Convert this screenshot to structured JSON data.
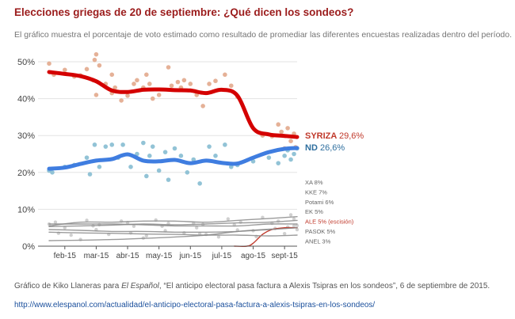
{
  "title": "Elecciones griegas de 20 de septiembre: ¿Qué dicen los sondeos?",
  "subtitle": "El gráfico muestra el porcentaje de voto estimado como resultado de promediar las diferentes encuestas realizadas dentro del período.",
  "caption": {
    "prefix": "Gráfico de Kiko Llaneras para ",
    "outlet": "El Español",
    "suffix": ", “El anticipo electoral pasa factura a Alexis Tsipras en los sondeos”, 6 de septiembre de 2015."
  },
  "source_url": "http://www.elespanol.com/actualidad/el-anticipo-electoral-pasa-factura-a-alexis-tsipras-en-los-sondeos/",
  "chart_data": {
    "type": "line",
    "title": "Elecciones griegas de 20 de septiembre: ¿Qué dicen los sondeos?",
    "xlabel": "",
    "ylabel": "",
    "x_range": [
      0,
      7.9
    ],
    "ylim": [
      0,
      50
    ],
    "yticks": [
      0,
      10,
      20,
      30,
      40,
      50
    ],
    "ytick_labels": [
      "0%",
      "10%",
      "20%",
      "30%",
      "40%",
      "50%"
    ],
    "xticks": [
      {
        "x": 0.5,
        "label": "feb-15"
      },
      {
        "x": 1.5,
        "label": "mar-15"
      },
      {
        "x": 2.5,
        "label": "abr-15"
      },
      {
        "x": 3.5,
        "label": "may-15"
      },
      {
        "x": 4.5,
        "label": "jun-15"
      },
      {
        "x": 5.5,
        "label": "jul-15"
      },
      {
        "x": 6.5,
        "label": "ago-15"
      },
      {
        "x": 7.5,
        "label": "sept-15"
      }
    ],
    "colors": {
      "syriza": "#d40000",
      "syriza_points": "#e2a98c",
      "nd": "#3f7de0",
      "nd_points": "#86bcd1",
      "minor": "#c4c4c4",
      "minor_line": "#8a8a8a",
      "ale": "#c0392b",
      "grid": "#e3e3e3",
      "axis": "#555555"
    },
    "series": [
      {
        "name": "SYRIZA",
        "label": "SYRIZA",
        "value_label": "29,6%",
        "role": "major",
        "trend": [
          [
            0,
            47.2
          ],
          [
            0.5,
            46.7
          ],
          [
            1,
            46.1
          ],
          [
            1.5,
            44.7
          ],
          [
            2,
            42.2
          ],
          [
            2.5,
            41.8
          ],
          [
            3,
            42.4
          ],
          [
            3.5,
            42.5
          ],
          [
            4,
            42.3
          ],
          [
            4.5,
            42.2
          ],
          [
            5,
            41.5
          ],
          [
            5.5,
            42.4
          ],
          [
            6,
            40.8
          ],
          [
            6.5,
            32.0
          ],
          [
            7,
            30.3
          ],
          [
            7.5,
            29.9
          ],
          [
            7.9,
            29.6
          ]
        ],
        "polls": [
          [
            0,
            49.5
          ],
          [
            0.15,
            46.5
          ],
          [
            0.5,
            47.8
          ],
          [
            0.8,
            46.0
          ],
          [
            1,
            46.3
          ],
          [
            1.2,
            48.0
          ],
          [
            1.4,
            45.0
          ],
          [
            1.45,
            50.5
          ],
          [
            1.5,
            52.0
          ],
          [
            1.5,
            41.0
          ],
          [
            1.6,
            49.0
          ],
          [
            1.8,
            44.0
          ],
          [
            2,
            46.5
          ],
          [
            2,
            41.5
          ],
          [
            2.1,
            43.0
          ],
          [
            2.3,
            39.5
          ],
          [
            2.5,
            40.8
          ],
          [
            2.7,
            44.0
          ],
          [
            2.8,
            45.0
          ],
          [
            3,
            43.0
          ],
          [
            3.1,
            46.5
          ],
          [
            3.2,
            44.0
          ],
          [
            3.3,
            40.0
          ],
          [
            3.5,
            41.0
          ],
          [
            3.8,
            48.5
          ],
          [
            3.9,
            43.5
          ],
          [
            4.1,
            44.5
          ],
          [
            4.2,
            43.0
          ],
          [
            4.3,
            45.0
          ],
          [
            4.5,
            44.0
          ],
          [
            4.7,
            41.0
          ],
          [
            4.9,
            38.0
          ],
          [
            5.1,
            44.0
          ],
          [
            5.3,
            44.8
          ],
          [
            5.6,
            46.5
          ],
          [
            5.8,
            43.5
          ],
          [
            6,
            40.5
          ],
          [
            6.8,
            30.0
          ],
          [
            7.1,
            29.8
          ],
          [
            7.3,
            33.0
          ],
          [
            7.4,
            31.0
          ],
          [
            7.5,
            26.5
          ],
          [
            7.6,
            32.0
          ],
          [
            7.7,
            28.5
          ],
          [
            7.8,
            30.5
          ],
          [
            7.85,
            26.8
          ]
        ]
      },
      {
        "name": "ND",
        "label": "ND",
        "value_label": "26,6%",
        "role": "major",
        "trend": [
          [
            0,
            21.0
          ],
          [
            0.5,
            21.3
          ],
          [
            1,
            22.3
          ],
          [
            1.5,
            23.2
          ],
          [
            2,
            23.6
          ],
          [
            2.5,
            24.9
          ],
          [
            3,
            23.2
          ],
          [
            3.5,
            23.0
          ],
          [
            4,
            23.4
          ],
          [
            4.5,
            22.5
          ],
          [
            5,
            23.2
          ],
          [
            5.5,
            22.6
          ],
          [
            6,
            22.4
          ],
          [
            6.5,
            24.0
          ],
          [
            7,
            25.5
          ],
          [
            7.5,
            26.4
          ],
          [
            7.9,
            26.6
          ]
        ],
        "polls": [
          [
            0,
            20.5
          ],
          [
            0.1,
            20.0
          ],
          [
            0.5,
            21.5
          ],
          [
            0.8,
            22.0
          ],
          [
            1.2,
            24.0
          ],
          [
            1.3,
            19.5
          ],
          [
            1.45,
            27.5
          ],
          [
            1.6,
            21.5
          ],
          [
            1.8,
            27.0
          ],
          [
            2,
            27.5
          ],
          [
            2.2,
            24.0
          ],
          [
            2.35,
            27.5
          ],
          [
            2.6,
            21.5
          ],
          [
            2.8,
            25.0
          ],
          [
            3,
            28.0
          ],
          [
            3.1,
            19.0
          ],
          [
            3.2,
            24.5
          ],
          [
            3.3,
            27.0
          ],
          [
            3.5,
            20.5
          ],
          [
            3.7,
            25.5
          ],
          [
            3.8,
            18.0
          ],
          [
            4,
            26.5
          ],
          [
            4.2,
            24.5
          ],
          [
            4.4,
            20.0
          ],
          [
            4.6,
            23.5
          ],
          [
            4.8,
            17.0
          ],
          [
            5.1,
            27.0
          ],
          [
            5.3,
            24.5
          ],
          [
            5.6,
            27.5
          ],
          [
            5.8,
            21.5
          ],
          [
            6,
            22.0
          ],
          [
            6.5,
            23.0
          ],
          [
            7,
            24.0
          ],
          [
            7.3,
            22.5
          ],
          [
            7.5,
            24.5
          ],
          [
            7.6,
            26.0
          ],
          [
            7.7,
            23.5
          ],
          [
            7.8,
            25.0
          ],
          [
            7.9,
            26.5
          ]
        ]
      },
      {
        "name": "XA",
        "label": "XA 8%",
        "role": "minor",
        "trend": [
          [
            0,
            5.5
          ],
          [
            1,
            6.5
          ],
          [
            2,
            6.5
          ],
          [
            3,
            6.8
          ],
          [
            4,
            6.8
          ],
          [
            5,
            6.5
          ],
          [
            6,
            7.0
          ],
          [
            7,
            7.5
          ],
          [
            7.9,
            8.0
          ]
        ],
        "polls": [
          [
            0,
            6.0
          ],
          [
            1.2,
            7.0
          ],
          [
            2.3,
            6.8
          ],
          [
            3.4,
            7.1
          ],
          [
            4.6,
            6.2
          ],
          [
            5.7,
            7.4
          ],
          [
            6.8,
            7.8
          ],
          [
            7.7,
            8.5
          ]
        ]
      },
      {
        "name": "KKE",
        "label": "KKE 7%",
        "role": "minor",
        "trend": [
          [
            0,
            5.3
          ],
          [
            1,
            5.5
          ],
          [
            2,
            5.7
          ],
          [
            3,
            6.0
          ],
          [
            4,
            5.8
          ],
          [
            5,
            6.0
          ],
          [
            6,
            6.3
          ],
          [
            7,
            6.5
          ],
          [
            7.9,
            7.0
          ]
        ],
        "polls": [
          [
            0.5,
            5.0
          ],
          [
            1.6,
            5.8
          ],
          [
            2.7,
            5.4
          ],
          [
            3.8,
            6.2
          ],
          [
            4.9,
            5.9
          ],
          [
            6.1,
            6.5
          ],
          [
            7.3,
            6.8
          ],
          [
            7.8,
            7.4
          ]
        ]
      },
      {
        "name": "Potami",
        "label": "Potami 6%",
        "role": "minor",
        "trend": [
          [
            0,
            6.0
          ],
          [
            1,
            6.0
          ],
          [
            2,
            6.0
          ],
          [
            3,
            5.8
          ],
          [
            4,
            5.5
          ],
          [
            5,
            5.5
          ],
          [
            6,
            5.5
          ],
          [
            7,
            6.0
          ],
          [
            7.9,
            6.0
          ]
        ],
        "polls": [
          [
            0.2,
            6.5
          ],
          [
            1.4,
            5.5
          ],
          [
            2.5,
            6.4
          ],
          [
            3.6,
            5.4
          ],
          [
            4.7,
            5.0
          ],
          [
            5.9,
            5.8
          ],
          [
            7.1,
            6.2
          ],
          [
            7.9,
            5.6
          ]
        ]
      },
      {
        "name": "EK",
        "label": "EK 5%",
        "role": "minor",
        "trend": [
          [
            0,
            1.5
          ],
          [
            2,
            1.8
          ],
          [
            4,
            2.5
          ],
          [
            5,
            3.0
          ],
          [
            6,
            4.0
          ],
          [
            7,
            4.6
          ],
          [
            7.9,
            5.0
          ]
        ],
        "polls": [
          [
            1.0,
            1.8
          ],
          [
            3.0,
            2.2
          ],
          [
            5.0,
            3.2
          ],
          [
            6.5,
            4.2
          ],
          [
            7.6,
            5.2
          ],
          [
            7.9,
            4.5
          ]
        ]
      },
      {
        "name": "ALE",
        "label": "ALE 5% (escisión)",
        "role": "ale",
        "trend": [
          [
            5.9,
            0.0
          ],
          [
            6.3,
            0.0
          ],
          [
            6.5,
            0.8
          ],
          [
            6.8,
            3.2
          ],
          [
            7.1,
            4.5
          ],
          [
            7.5,
            5.0
          ],
          [
            7.9,
            5.0
          ]
        ],
        "polls": []
      },
      {
        "name": "PASOK",
        "label": "PASOK 5%",
        "role": "minor",
        "trend": [
          [
            0,
            4.5
          ],
          [
            1,
            4.3
          ],
          [
            2,
            4.0
          ],
          [
            3,
            4.0
          ],
          [
            4,
            3.8
          ],
          [
            5,
            3.8
          ],
          [
            6,
            4.0
          ],
          [
            7,
            4.5
          ],
          [
            7.9,
            5.0
          ]
        ],
        "polls": [
          [
            0.3,
            3.5
          ],
          [
            1.5,
            4.5
          ],
          [
            2.6,
            3.6
          ],
          [
            3.7,
            4.2
          ],
          [
            4.8,
            3.4
          ],
          [
            6.0,
            4.4
          ],
          [
            7.2,
            4.8
          ],
          [
            7.8,
            5.5
          ]
        ]
      },
      {
        "name": "ANEL",
        "label": "ANEL 3%",
        "role": "minor",
        "trend": [
          [
            0,
            3.8
          ],
          [
            1,
            3.6
          ],
          [
            2,
            3.5
          ],
          [
            3,
            3.3
          ],
          [
            4,
            3.2
          ],
          [
            5,
            3.0
          ],
          [
            6,
            3.0
          ],
          [
            7,
            2.8
          ],
          [
            7.9,
            3.0
          ]
        ],
        "polls": [
          [
            0.7,
            3.0
          ],
          [
            1.9,
            3.2
          ],
          [
            3.1,
            2.8
          ],
          [
            4.3,
            3.6
          ],
          [
            5.4,
            2.5
          ],
          [
            6.6,
            2.6
          ],
          [
            7.5,
            3.4
          ]
        ]
      }
    ]
  }
}
